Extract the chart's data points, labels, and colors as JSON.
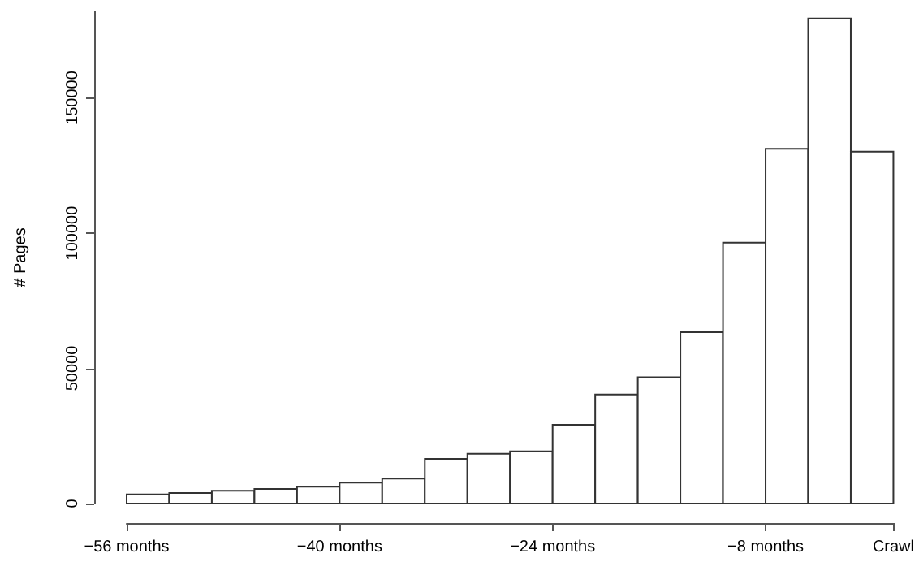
{
  "chart_data": {
    "type": "histogram",
    "ylabel": "# Pages",
    "color": "#ffffff",
    "bins": [
      -56,
      -52.8,
      -49.6,
      -46.4,
      -43.2,
      -40,
      -36.8,
      -33.6,
      -30.4,
      -27.2,
      -24,
      -20.8,
      -17.6,
      -14.4,
      -11.2,
      -8,
      -4.8,
      -1.6,
      1.6
    ],
    "values": [
      3400,
      3900,
      4700,
      5400,
      6200,
      7700,
      9200,
      16500,
      18400,
      19300,
      29100,
      40300,
      46700,
      63400,
      96500,
      131200,
      179400,
      130100
    ],
    "xlim": [
      -56,
      1.6
    ],
    "xticks": [
      {
        "value": -56,
        "label": "−56 months"
      },
      {
        "value": -40,
        "label": "−40 months"
      },
      {
        "value": -24,
        "label": "−24 months"
      },
      {
        "value": -8,
        "label": "−8 months"
      },
      {
        "value": 1.6,
        "label": "Crawl"
      }
    ],
    "ylim": [
      0,
      182000
    ],
    "yticks": [
      0,
      50000,
      100000,
      150000
    ]
  }
}
